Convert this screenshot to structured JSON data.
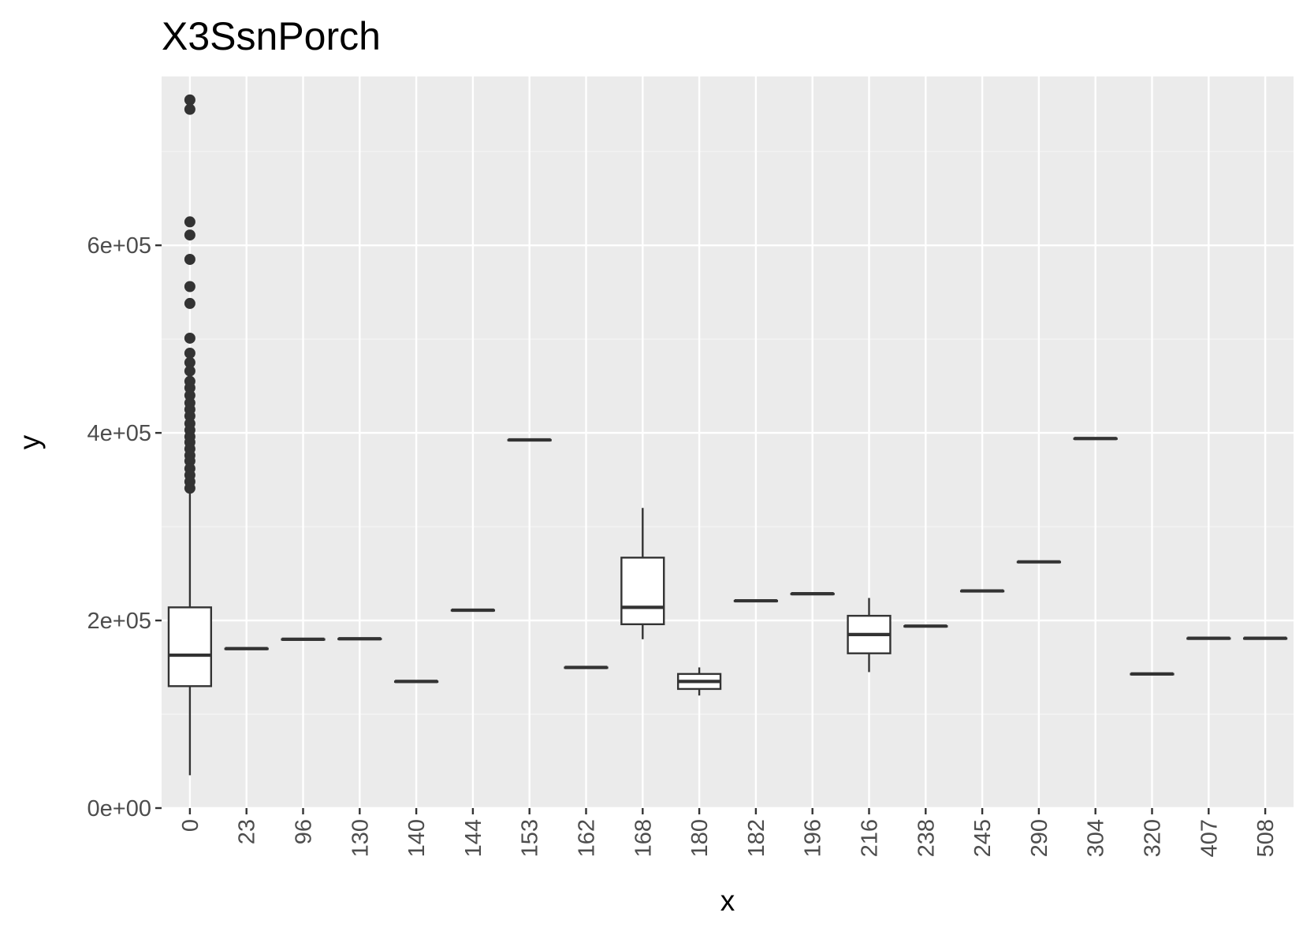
{
  "chart_data": {
    "type": "boxplot",
    "title": "X3SsnPorch",
    "xlabel": "x",
    "ylabel": "y",
    "ylim": [
      0,
      780000
    ],
    "y_ticks": [
      0,
      200000,
      400000,
      600000
    ],
    "y_tick_labels": [
      "0e+00",
      "2e+05",
      "4e+05",
      "6e+05"
    ],
    "grid": true,
    "legend": "none",
    "categories": [
      "0",
      "23",
      "96",
      "130",
      "140",
      "144",
      "153",
      "162",
      "168",
      "180",
      "182",
      "196",
      "216",
      "238",
      "245",
      "290",
      "304",
      "320",
      "407",
      "508"
    ],
    "boxes": [
      {
        "x": "0",
        "q1": 130000,
        "median": 163000,
        "q3": 214000,
        "lower_whisker": 35000,
        "upper_whisker": 338000,
        "outliers": [
          755000,
          745000,
          625000,
          611000,
          585000,
          556000,
          538000,
          501000,
          485000,
          475000,
          466000,
          455000,
          448000,
          440000,
          432000,
          425000,
          418000,
          410000,
          403000,
          396000,
          390000,
          383000,
          376000,
          370000,
          362000,
          355000,
          348000,
          341000
        ]
      },
      {
        "x": "23",
        "q1": 170000,
        "median": 170000,
        "q3": 170000,
        "lower_whisker": 170000,
        "upper_whisker": 170000,
        "outliers": []
      },
      {
        "x": "96",
        "q1": 180000,
        "median": 180000,
        "q3": 180000,
        "lower_whisker": 180000,
        "upper_whisker": 180000,
        "outliers": []
      },
      {
        "x": "130",
        "q1": 180500,
        "median": 180500,
        "q3": 180500,
        "lower_whisker": 180500,
        "upper_whisker": 180500,
        "outliers": []
      },
      {
        "x": "140",
        "q1": 135000,
        "median": 135000,
        "q3": 135000,
        "lower_whisker": 135000,
        "upper_whisker": 135000,
        "outliers": []
      },
      {
        "x": "144",
        "q1": 211000,
        "median": 211000,
        "q3": 211000,
        "lower_whisker": 211000,
        "upper_whisker": 211000,
        "outliers": []
      },
      {
        "x": "153",
        "q1": 392500,
        "median": 392500,
        "q3": 392500,
        "lower_whisker": 392500,
        "upper_whisker": 392500,
        "outliers": []
      },
      {
        "x": "162",
        "q1": 149900,
        "median": 149900,
        "q3": 149900,
        "lower_whisker": 149900,
        "upper_whisker": 149900,
        "outliers": []
      },
      {
        "x": "168",
        "q1": 196000,
        "median": 214000,
        "q3": 267000,
        "lower_whisker": 180000,
        "upper_whisker": 320000,
        "outliers": []
      },
      {
        "x": "180",
        "q1": 127000,
        "median": 135000,
        "q3": 143000,
        "lower_whisker": 120000,
        "upper_whisker": 150000,
        "outliers": []
      },
      {
        "x": "182",
        "q1": 221000,
        "median": 221000,
        "q3": 221000,
        "lower_whisker": 221000,
        "upper_whisker": 221000,
        "outliers": []
      },
      {
        "x": "196",
        "q1": 228500,
        "median": 228500,
        "q3": 228500,
        "lower_whisker": 228500,
        "upper_whisker": 228500,
        "outliers": []
      },
      {
        "x": "216",
        "q1": 165000,
        "median": 185000,
        "q3": 205000,
        "lower_whisker": 145000,
        "upper_whisker": 224000,
        "outliers": []
      },
      {
        "x": "238",
        "q1": 194000,
        "median": 194000,
        "q3": 194000,
        "lower_whisker": 194000,
        "upper_whisker": 194000,
        "outliers": []
      },
      {
        "x": "245",
        "q1": 231500,
        "median": 231500,
        "q3": 231500,
        "lower_whisker": 231500,
        "upper_whisker": 231500,
        "outliers": []
      },
      {
        "x": "290",
        "q1": 262500,
        "median": 262500,
        "q3": 262500,
        "lower_whisker": 262500,
        "upper_whisker": 262500,
        "outliers": []
      },
      {
        "x": "304",
        "q1": 394000,
        "median": 394000,
        "q3": 394000,
        "lower_whisker": 394000,
        "upper_whisker": 394000,
        "outliers": []
      },
      {
        "x": "320",
        "q1": 143000,
        "median": 143000,
        "q3": 143000,
        "lower_whisker": 143000,
        "upper_whisker": 143000,
        "outliers": []
      },
      {
        "x": "407",
        "q1": 181000,
        "median": 181000,
        "q3": 181000,
        "lower_whisker": 181000,
        "upper_whisker": 181000,
        "outliers": []
      },
      {
        "x": "508",
        "q1": 181000,
        "median": 181000,
        "q3": 181000,
        "lower_whisker": 181000,
        "upper_whisker": 181000,
        "outliers": []
      }
    ]
  },
  "colors": {
    "panel_background": "#ebebeb",
    "grid_major": "#ffffff",
    "grid_minor": "#f5f5f5",
    "box_fill": "#ffffff",
    "box_stroke": "#333333",
    "outlier": "#333333",
    "axis_text": "#4d4d4d",
    "title_text": "#000000"
  }
}
